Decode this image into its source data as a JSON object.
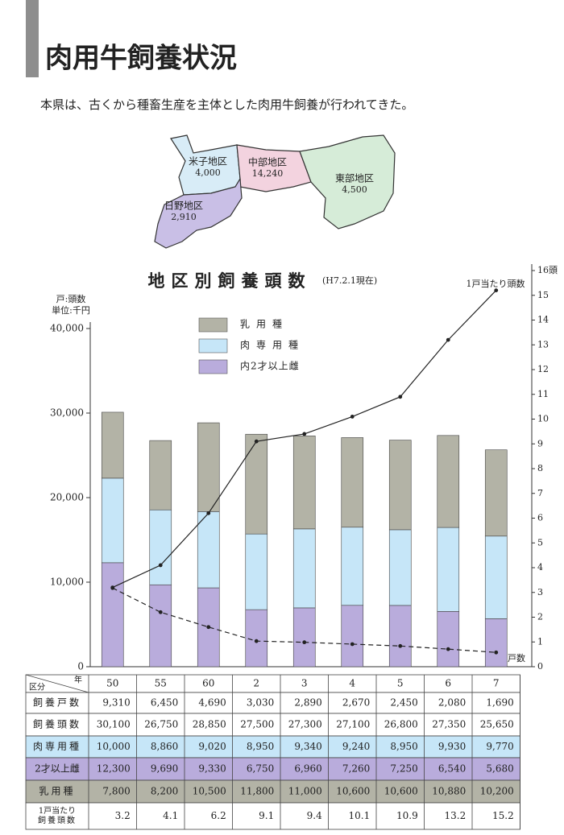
{
  "header": {
    "title": "肉用牛飼養状況",
    "intro": "本県は、古くから種畜生産を主体とした肉用牛飼養が行われてきた。"
  },
  "map": {
    "regions": [
      {
        "name": "米子地区",
        "value": "4,000"
      },
      {
        "name": "中部地区",
        "value": "14,240"
      },
      {
        "name": "東部地区",
        "value": "4,500"
      },
      {
        "name": "日野地区",
        "value": "2,910"
      }
    ]
  },
  "chart_data": {
    "type": "bar",
    "title": "地区別飼養頭数",
    "subtitle": "(H7.2.1現在)",
    "y_label": "戸:頭数",
    "y_unit": "単位:千円",
    "categories": [
      "50",
      "55",
      "60",
      "2",
      "3",
      "4",
      "5",
      "6",
      "7"
    ],
    "series": [
      {
        "name": "乳用種",
        "color": "#b3b3a6",
        "values": [
          7800,
          8200,
          10500,
          11800,
          11000,
          10600,
          10600,
          10880,
          10200
        ],
        "value_labels": [
          "7,800",
          "8,200",
          "10,500",
          "11,800",
          "11,000",
          "10,600",
          "10,600",
          "10,880",
          "10,200"
        ]
      },
      {
        "name": "肉専用種",
        "color": "#c6e6f8",
        "values": [
          10000,
          8860,
          9020,
          8950,
          9340,
          9240,
          8950,
          9930,
          9770
        ],
        "value_labels": [
          "10,000",
          "8,860",
          "9,020",
          "8,950",
          "9,340",
          "9,240",
          "8,950",
          "9,930",
          "9,770"
        ]
      },
      {
        "name": "内2才以上雌",
        "color": "#b9acdc",
        "values": [
          12300,
          9690,
          9330,
          6750,
          6960,
          7260,
          7250,
          6540,
          5680
        ],
        "value_labels": [
          "12,300",
          "9,690",
          "9,330",
          "6,750",
          "6,960",
          "7,260",
          "7,250",
          "6,540",
          "5,680"
        ]
      },
      {
        "name": "戸数",
        "type": "line",
        "style": "dashed",
        "color": "#222222",
        "values": [
          9310,
          6450,
          4690,
          3030,
          2890,
          2670,
          2450,
          2080,
          1690
        ],
        "value_labels": [
          "9,310",
          "6,450",
          "4,690",
          "3,030",
          "2,890",
          "2,670",
          "2,450",
          "2,080",
          "1,690"
        ]
      },
      {
        "name": "1戸当たり頭数",
        "type": "line",
        "style": "solid",
        "axis": "y2",
        "color": "#222222",
        "values": [
          3.2,
          4.1,
          6.2,
          9.1,
          9.4,
          10.1,
          10.9,
          13.2,
          15.2
        ]
      }
    ],
    "ylim": [
      0,
      40000
    ],
    "yticks": [
      0,
      {
        "value": 10000,
        "label": "10,000"
      },
      {
        "value": 20000,
        "label": "20,000"
      },
      {
        "value": 30000,
        "label": "30,000"
      },
      {
        "value": 40000,
        "label": "40,000"
      }
    ],
    "y2lim": [
      0,
      16
    ],
    "y2ticks": [
      0,
      1,
      2,
      3,
      4,
      5,
      6,
      7,
      8,
      9,
      10,
      11,
      12,
      13,
      14,
      15,
      {
        "value": 16,
        "label": "16頭"
      }
    ]
  },
  "table": {
    "corner_top": "年",
    "corner_bottom": "区分",
    "row_labels": [
      "飼養戸数",
      "飼養頭数",
      "肉専用種",
      "2才以上雌",
      "乳用種"
    ],
    "per_head_label": [
      "1戸当たり",
      "飼養頭数"
    ],
    "totals": [
      "30,100",
      "26,750",
      "28,850",
      "27,500",
      "27,300",
      "27,100",
      "26,800",
      "27,350",
      "25,650"
    ]
  }
}
